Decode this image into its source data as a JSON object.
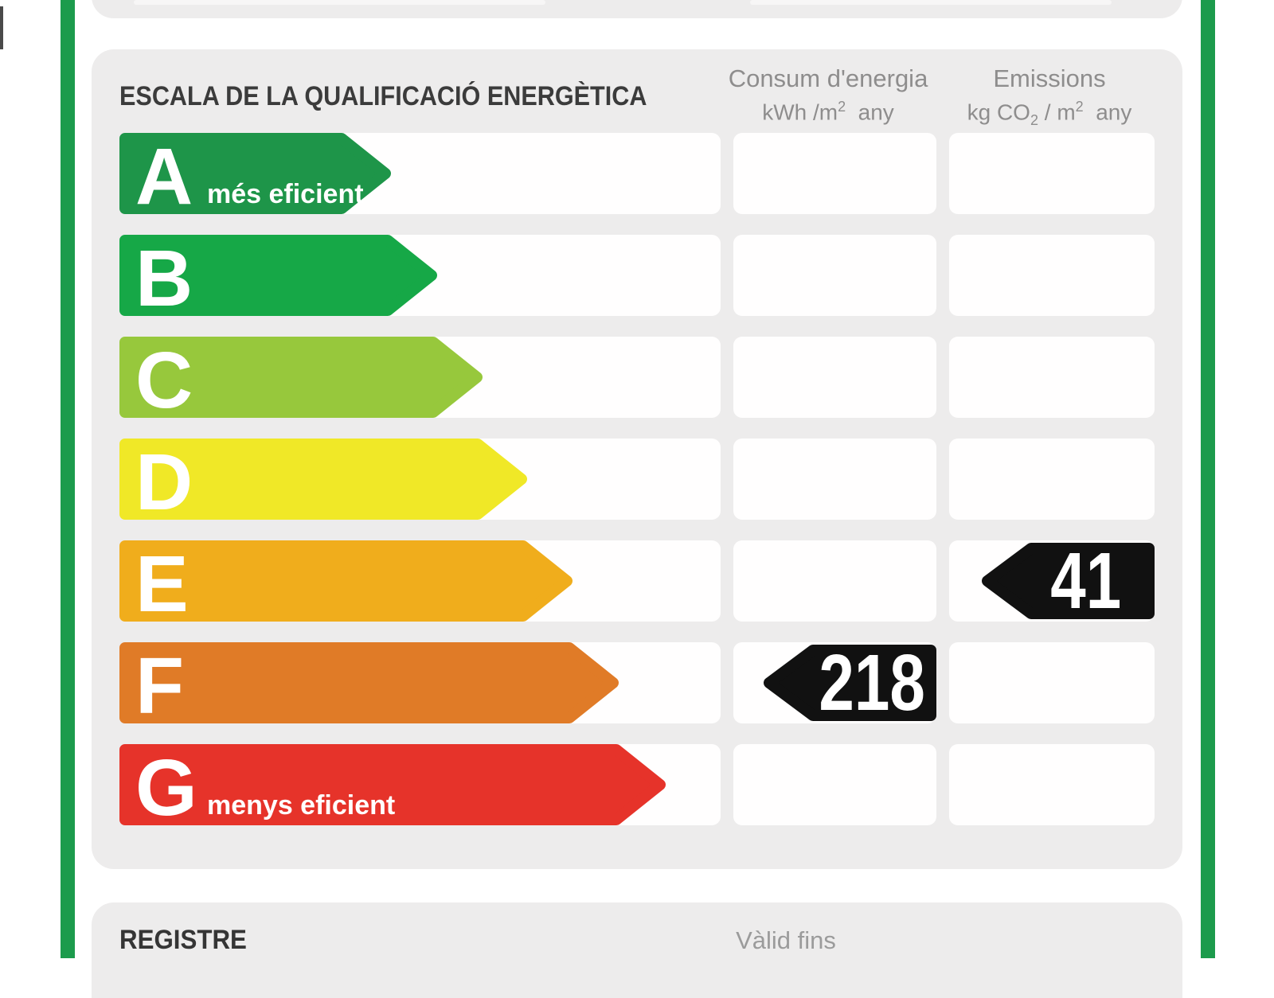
{
  "page": {
    "border_color": "#1c9b4c",
    "panel_color": "#edecec"
  },
  "scale_section": {
    "title": "ESCALA DE LA QUALIFICACIÓ ENERGÈTICA",
    "columns": {
      "consum": {
        "title": "Consum d'energia",
        "unit_pre": "kWh /m",
        "unit_sup": "2",
        "unit_post": "  any"
      },
      "emissions": {
        "title": "Emissions",
        "unit_pre": "kg CO",
        "unit_sub": "2",
        "unit_mid": " / m",
        "unit_sup": "2",
        "unit_post": "  any"
      }
    },
    "ratings": [
      {
        "letter": "A",
        "label": "més eficient",
        "color": "#1e9549",
        "bar_length": 341
      },
      {
        "letter": "B",
        "label": "",
        "color": "#16a847",
        "bar_length": 399
      },
      {
        "letter": "C",
        "label": "",
        "color": "#97c83c",
        "bar_length": 456
      },
      {
        "letter": "D",
        "label": "",
        "color": "#f0e827",
        "bar_length": 512
      },
      {
        "letter": "E",
        "label": "",
        "color": "#f0ad1c",
        "bar_length": 569
      },
      {
        "letter": "F",
        "label": "",
        "color": "#e07b27",
        "bar_length": 627
      },
      {
        "letter": "G",
        "label": "menys eficient",
        "color": "#e6332a",
        "bar_length": 686
      }
    ],
    "values": {
      "marker_color": "#111111",
      "consum": {
        "value": "218",
        "row_letter": "F"
      },
      "emissions": {
        "value": "41",
        "row_letter": "E"
      }
    }
  },
  "registre_section": {
    "label": "REGISTRE",
    "valid_label": "Vàlid fins"
  }
}
